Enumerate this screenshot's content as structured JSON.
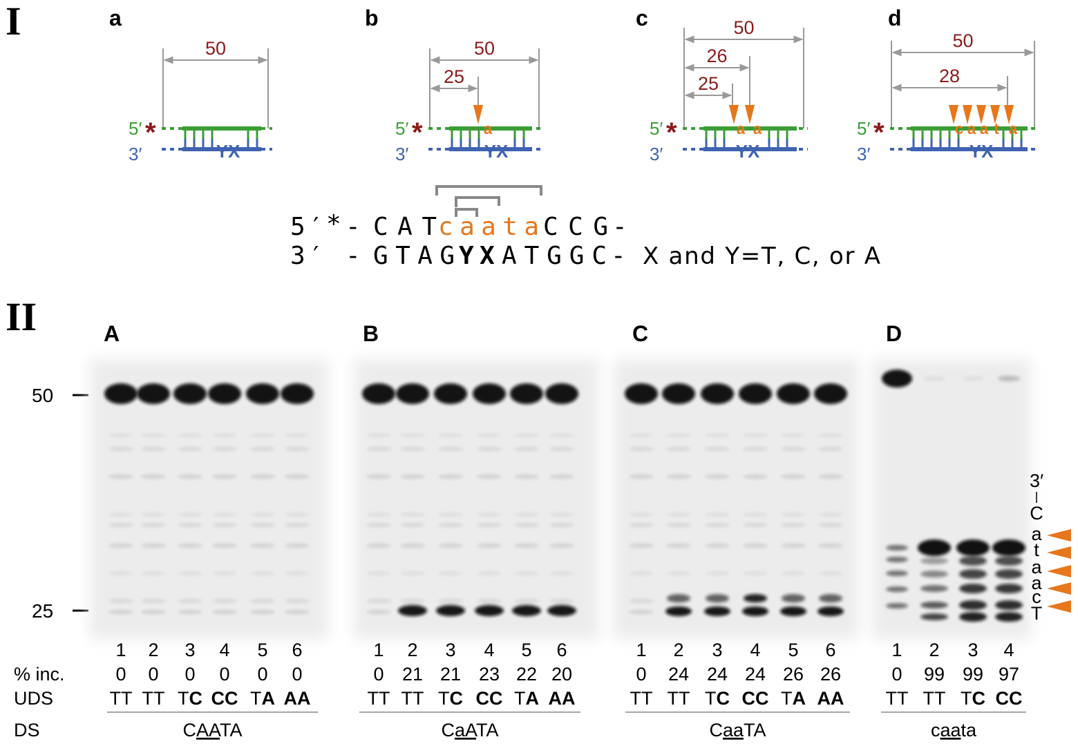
{
  "part_I": {
    "label": "I",
    "panels": [
      {
        "label": "a",
        "five": "5′",
        "star": "*",
        "three": "3′",
        "yx": "YX",
        "dimensions": [
          50
        ],
        "inserted": []
      },
      {
        "label": "b",
        "five": "5′",
        "star": "*",
        "three": "3′",
        "yx": "YX",
        "dimensions": [
          50,
          25
        ],
        "inserted": [
          "a"
        ]
      },
      {
        "label": "c",
        "five": "5′",
        "star": "*",
        "three": "3′",
        "yx": "YX",
        "dimensions": [
          50,
          26,
          25
        ],
        "inserted": [
          "a",
          "a"
        ]
      },
      {
        "label": "d",
        "five": "5′",
        "star": "*",
        "three": "3′",
        "yx": "YX",
        "dimensions": [
          50,
          28
        ],
        "inserted": [
          "c",
          "a",
          "a",
          "t",
          "a"
        ]
      }
    ],
    "sequence": {
      "top": {
        "end": "5′",
        "star": "*",
        "dash": "-",
        "left": "CAT",
        "insert": "caata",
        "right": "CCG",
        "dash_end": "-"
      },
      "bottom": {
        "end": "3′",
        "dash": "-",
        "left": "GTAG",
        "y": "Y",
        "x": "X",
        "right": "ATGGC",
        "dash_end": "-",
        "note": "X and Y=T, C, or A"
      }
    }
  },
  "part_II": {
    "label": "II",
    "markers": [
      50,
      25
    ],
    "row_labels": {
      "inc": "% inc.",
      "uds": "UDS",
      "ds": "DS"
    },
    "gels": [
      {
        "label": "A",
        "lanes": [
          1,
          2,
          3,
          4,
          5,
          6
        ],
        "inc": [
          0,
          0,
          0,
          0,
          0,
          0
        ],
        "uds": [
          [
            "T",
            "T"
          ],
          [
            "T",
            "T"
          ],
          [
            "T",
            "C"
          ],
          [
            "C",
            "C"
          ],
          [
            "T",
            "A"
          ],
          [
            "A",
            "A"
          ]
        ],
        "uds_bold": [
          [
            false,
            false
          ],
          [
            false,
            false
          ],
          [
            false,
            true
          ],
          [
            true,
            true
          ],
          [
            false,
            true
          ],
          [
            true,
            true
          ]
        ],
        "ds": [
          "C",
          "AA",
          "TA"
        ]
      },
      {
        "label": "B",
        "lanes": [
          1,
          2,
          3,
          4,
          5,
          6
        ],
        "inc": [
          0,
          21,
          21,
          23,
          22,
          20
        ],
        "uds": [
          [
            "T",
            "T"
          ],
          [
            "T",
            "T"
          ],
          [
            "T",
            "C"
          ],
          [
            "C",
            "C"
          ],
          [
            "T",
            "A"
          ],
          [
            "A",
            "A"
          ]
        ],
        "uds_bold": [
          [
            false,
            false
          ],
          [
            false,
            false
          ],
          [
            false,
            true
          ],
          [
            true,
            true
          ],
          [
            false,
            true
          ],
          [
            true,
            true
          ]
        ],
        "ds": [
          "C",
          "aA",
          "TA"
        ]
      },
      {
        "label": "C",
        "lanes": [
          1,
          2,
          3,
          4,
          5,
          6
        ],
        "inc": [
          0,
          24,
          24,
          24,
          26,
          26
        ],
        "uds": [
          [
            "T",
            "T"
          ],
          [
            "T",
            "T"
          ],
          [
            "T",
            "C"
          ],
          [
            "C",
            "C"
          ],
          [
            "T",
            "A"
          ],
          [
            "A",
            "A"
          ]
        ],
        "uds_bold": [
          [
            false,
            false
          ],
          [
            false,
            false
          ],
          [
            false,
            true
          ],
          [
            true,
            true
          ],
          [
            false,
            true
          ],
          [
            true,
            true
          ]
        ],
        "ds": [
          "C",
          "aa",
          "TA"
        ]
      },
      {
        "label": "D",
        "lanes": [
          1,
          2,
          3,
          4
        ],
        "inc": [
          0,
          99,
          99,
          97
        ],
        "uds": [
          [
            "T",
            "T"
          ],
          [
            "T",
            "T"
          ],
          [
            "T",
            "C"
          ],
          [
            "C",
            "C"
          ]
        ],
        "uds_bold": [
          [
            false,
            false
          ],
          [
            false,
            false
          ],
          [
            false,
            true
          ],
          [
            true,
            true
          ]
        ],
        "ds": [
          "c",
          "aa",
          "ta"
        ]
      }
    ],
    "strand_labels": [
      "3′",
      "C",
      "a",
      "t",
      "a",
      "a",
      "c",
      "T"
    ]
  }
}
